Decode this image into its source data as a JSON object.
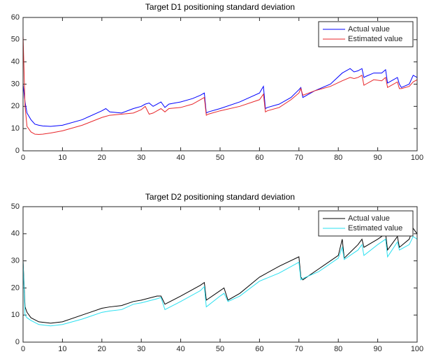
{
  "chart_data": [
    {
      "type": "line",
      "title": "Target D1 positioning standard deviation",
      "x": [
        0,
        0.5,
        1,
        2,
        3,
        4,
        5,
        7,
        10,
        15,
        20,
        21,
        22,
        25,
        28,
        30,
        31,
        32,
        33,
        34,
        35,
        36,
        37,
        40,
        43,
        45,
        46,
        46.5,
        47,
        50,
        55,
        60,
        61,
        61.5,
        62,
        65,
        68,
        70,
        70.5,
        71,
        74,
        78,
        81,
        83,
        84,
        85,
        86,
        86.5,
        87,
        89,
        91,
        92,
        92.5,
        93,
        95,
        95.5,
        96,
        98,
        99,
        100
      ],
      "series": [
        {
          "name": "Actual value",
          "color": "#0000ff",
          "values": [
            30,
            22,
            17,
            14,
            12,
            11.5,
            11.2,
            11,
            11.5,
            14,
            18,
            19,
            17.5,
            17,
            19,
            20,
            21,
            21.5,
            20,
            21,
            22,
            19.5,
            21,
            22,
            23.5,
            25,
            26,
            17,
            17.5,
            19,
            22,
            26,
            29,
            19,
            19.5,
            21,
            24,
            27.5,
            28.5,
            24,
            27,
            30,
            35,
            37,
            35.5,
            36,
            37,
            33,
            33.5,
            35,
            35,
            36.5,
            30.5,
            31,
            33,
            30,
            28.5,
            30,
            34,
            33
          ]
        },
        {
          "name": "Estimated value",
          "color": "#e8262a",
          "values": [
            52,
            20,
            11,
            8.5,
            7.5,
            7.4,
            7.5,
            8,
            9,
            11.5,
            15,
            15.5,
            16,
            16.5,
            17,
            18.5,
            20,
            16.5,
            17,
            18,
            19,
            17.5,
            19,
            19.5,
            21,
            23,
            24,
            16,
            16.5,
            18,
            20,
            23,
            25.5,
            17.5,
            18,
            19.5,
            23,
            26,
            28,
            25,
            27,
            29,
            31.5,
            33,
            32.5,
            33,
            34,
            29.5,
            30,
            32,
            31.5,
            33,
            28.5,
            29,
            31,
            28,
            28,
            29,
            31,
            32
          ]
        }
      ],
      "xlim": [
        0,
        100
      ],
      "xticks": [
        0,
        10,
        20,
        30,
        40,
        50,
        60,
        70,
        80,
        90,
        100
      ],
      "ylim": [
        0,
        60
      ],
      "yticks": [
        0,
        10,
        20,
        30,
        40,
        50,
        60
      ],
      "legend": "upper right"
    },
    {
      "type": "line",
      "title": "Target D2 positioning standard deviation",
      "x": [
        0,
        0.5,
        1,
        2,
        4,
        7,
        10,
        15,
        20,
        22,
        25,
        28,
        30,
        34,
        35,
        36,
        40,
        45,
        46,
        46.5,
        50,
        51,
        52,
        55,
        60,
        65,
        70,
        70.5,
        71,
        75,
        80,
        81,
        81.5,
        85,
        86,
        86.5,
        90,
        92,
        92.5,
        95,
        95.5,
        98,
        99,
        100
      ],
      "series": [
        {
          "name": "Actual value",
          "color": "#000000",
          "values": [
            30,
            13,
            11,
            9,
            7.5,
            7,
            7.5,
            10,
            12.5,
            13,
            13.5,
            15,
            15.5,
            17,
            17,
            14,
            17,
            21,
            22,
            15.5,
            19,
            20,
            15.5,
            18,
            24,
            28,
            31.5,
            24,
            23,
            27,
            32,
            38,
            31,
            36,
            38,
            35,
            38,
            40,
            34,
            39,
            35,
            38,
            42,
            40
          ]
        },
        {
          "name": "Estimated value",
          "color": "#29e0f0",
          "values": [
            30,
            10,
            9,
            8,
            6.5,
            6,
            6.5,
            8.5,
            11,
            11.5,
            12,
            14,
            14.5,
            16,
            16.5,
            12,
            15,
            19,
            20.5,
            13,
            17,
            18,
            15,
            17,
            22.5,
            25.5,
            29.5,
            23,
            23.5,
            26,
            31,
            35,
            30.5,
            34,
            36,
            32,
            36,
            38,
            31.5,
            37,
            34,
            36,
            39,
            38
          ]
        }
      ],
      "xlim": [
        0,
        100
      ],
      "xticks": [
        0,
        10,
        20,
        30,
        40,
        50,
        60,
        70,
        80,
        90,
        100
      ],
      "ylim": [
        0,
        50
      ],
      "yticks": [
        0,
        10,
        20,
        30,
        40,
        50
      ],
      "legend": "upper right"
    }
  ]
}
